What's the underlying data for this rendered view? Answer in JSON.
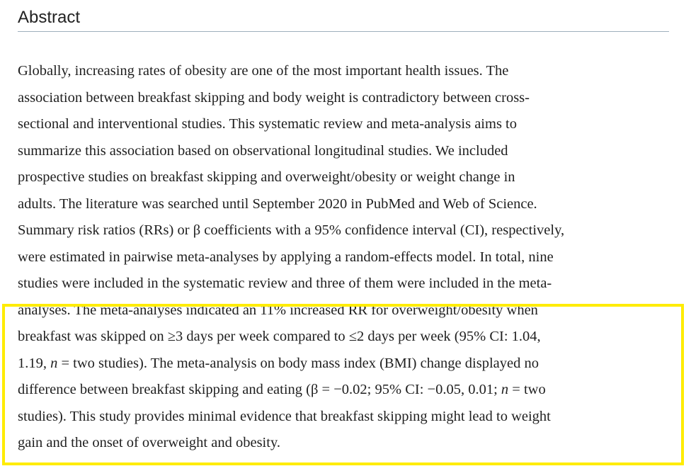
{
  "section": {
    "title": "Abstract"
  },
  "abstract": {
    "lines": [
      "Globally, increasing rates of obesity are one of the most important health issues. The",
      "association between breakfast skipping and body weight is contradictory between cross-",
      "sectional and interventional studies. This systematic review and meta-analysis aims to",
      "summarize this association based on observational longitudinal studies. We included",
      "prospective studies on breakfast skipping and overweight/obesity or weight change in",
      "adults. The literature was searched until September 2020 in PubMed and Web of Science.",
      "Summary risk ratios (RRs) or β coefficients with a 95% confidence interval (CI), respectively,",
      "were estimated in pairwise meta-analyses by applying a random-effects model. In total, nine",
      "studies were included in the systematic review and three of them were included in the meta-",
      "analyses. The meta-analyses indicated an 11% increased RR for overweight/obesity when",
      "breakfast was skipped on ≥3 days per week compared to ≤2 days per week (95% CI: 1.04,"
    ],
    "line12": {
      "before": "1.19, ",
      "n": "n",
      "after": " = two studies). The meta-analysis on body mass index (BMI) change displayed no"
    },
    "line13": {
      "before": "difference between breakfast skipping and eating (β = −0.02; 95% CI: −0.05, 0.01; ",
      "n": "n",
      "after": " = two"
    },
    "line14": "studies). This study provides minimal evidence that breakfast skipping might lead to weight",
    "line15": "gain and the onset of overweight and obesity."
  },
  "colors": {
    "highlight": "#ffec00",
    "rule": "#9fb0bd",
    "text": "#1f1f1f"
  }
}
